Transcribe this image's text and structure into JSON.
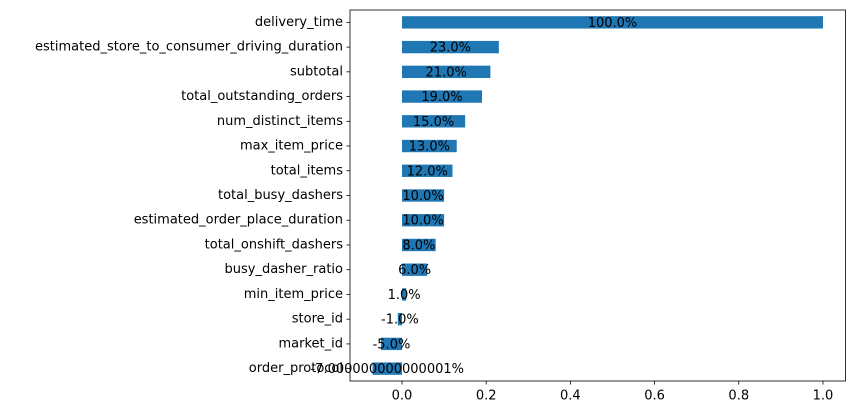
{
  "chart_data": {
    "type": "barh",
    "categories": [
      "delivery_time",
      "estimated_store_to_consumer_driving_duration",
      "subtotal",
      "total_outstanding_orders",
      "num_distinct_items",
      "max_item_price",
      "total_items",
      "total_busy_dashers",
      "estimated_order_place_duration",
      "total_onshift_dashers",
      "busy_dasher_ratio",
      "min_item_price",
      "store_id",
      "market_id",
      "order_protocol"
    ],
    "values": [
      1.0,
      0.23,
      0.21,
      0.19,
      0.15,
      0.13,
      0.12,
      0.1,
      0.1,
      0.08,
      0.06,
      0.01,
      -0.01,
      -0.05,
      -0.07
    ],
    "value_labels": [
      "100.0%",
      "23.0%",
      "21.0%",
      "19.0%",
      "15.0%",
      "13.0%",
      "12.0%",
      "10.0%",
      "10.0%",
      "8.0%",
      "6.0%",
      "1.0%",
      "-1.0%",
      "-5.0%",
      "-7.000000000000001%"
    ],
    "color": "#1f77b4",
    "xlim": [
      -0.1235,
      1.0535
    ],
    "xticks": [
      {
        "value": 0,
        "label": "0.0"
      },
      {
        "value": 0.2,
        "label": "0.2"
      },
      {
        "value": 0.4,
        "label": "0.4"
      },
      {
        "value": 0.6,
        "label": "0.6"
      },
      {
        "value": 0.8,
        "label": "0.8"
      },
      {
        "value": 1.0,
        "label": "1.0"
      }
    ],
    "grid": false
  }
}
